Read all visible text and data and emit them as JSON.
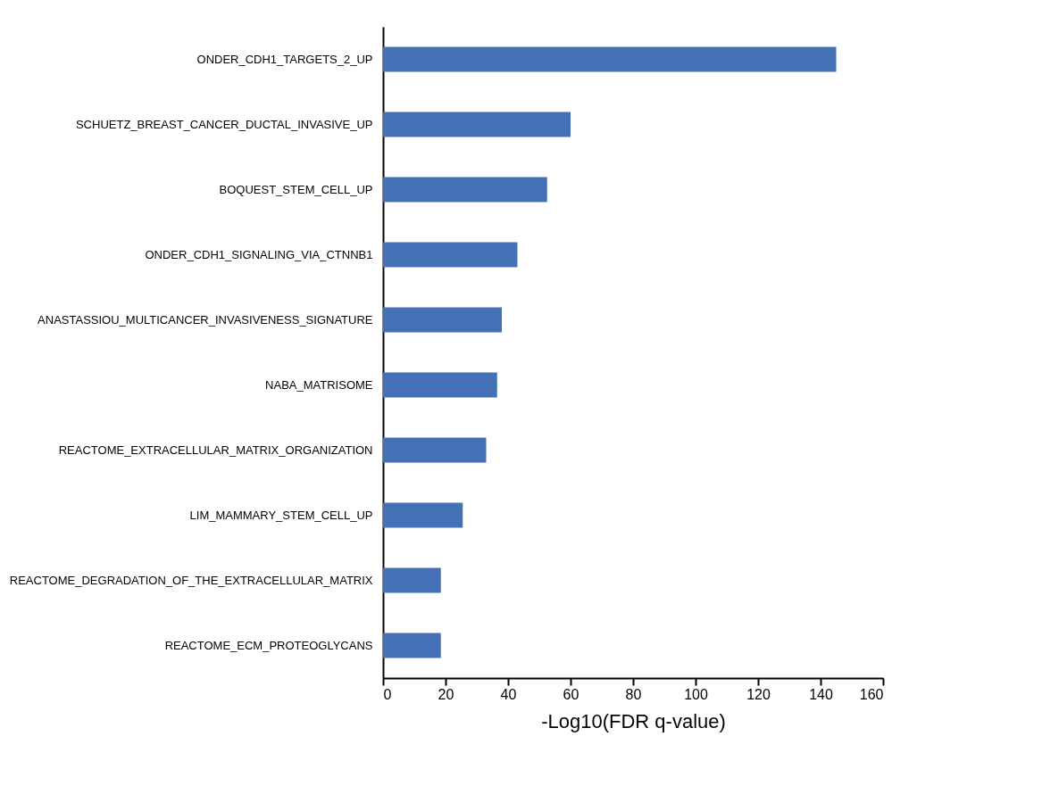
{
  "chart_data": {
    "type": "bar",
    "orientation": "horizontal",
    "xlabel": "-Log10(FDR q-value)",
    "categories": [
      "ONDER_CDH1_TARGETS_2_UP",
      "SCHUETZ_BREAST_CANCER_DUCTAL_INVASIVE_UP",
      "BOQUEST_STEM_CELL_UP",
      "ONDER_CDH1_SIGNALING_VIA_CTNNB1",
      "ANASTASSIOU_MULTICANCER_INVASIVENESS_SIGNATURE",
      "NABA_MATRISOME",
      "REACTOME_EXTRACELLULAR_MATRIX_ORGANIZATION",
      "LIM_MAMMARY_STEM_CELL_UP",
      "REACTOME_DEGRADATION_OF_THE_EXTRACELLULAR_MATRIX",
      "REACTOME_ECM_PROTEOGLYCANS"
    ],
    "values": [
      145,
      60,
      52.5,
      43,
      38,
      36.5,
      33,
      25.5,
      18.5,
      18.5
    ],
    "color": "#4470b5",
    "xlim": [
      0,
      160
    ],
    "xticks": [
      0,
      20,
      40,
      60,
      80,
      100,
      120,
      140,
      160
    ],
    "grid": false
  }
}
